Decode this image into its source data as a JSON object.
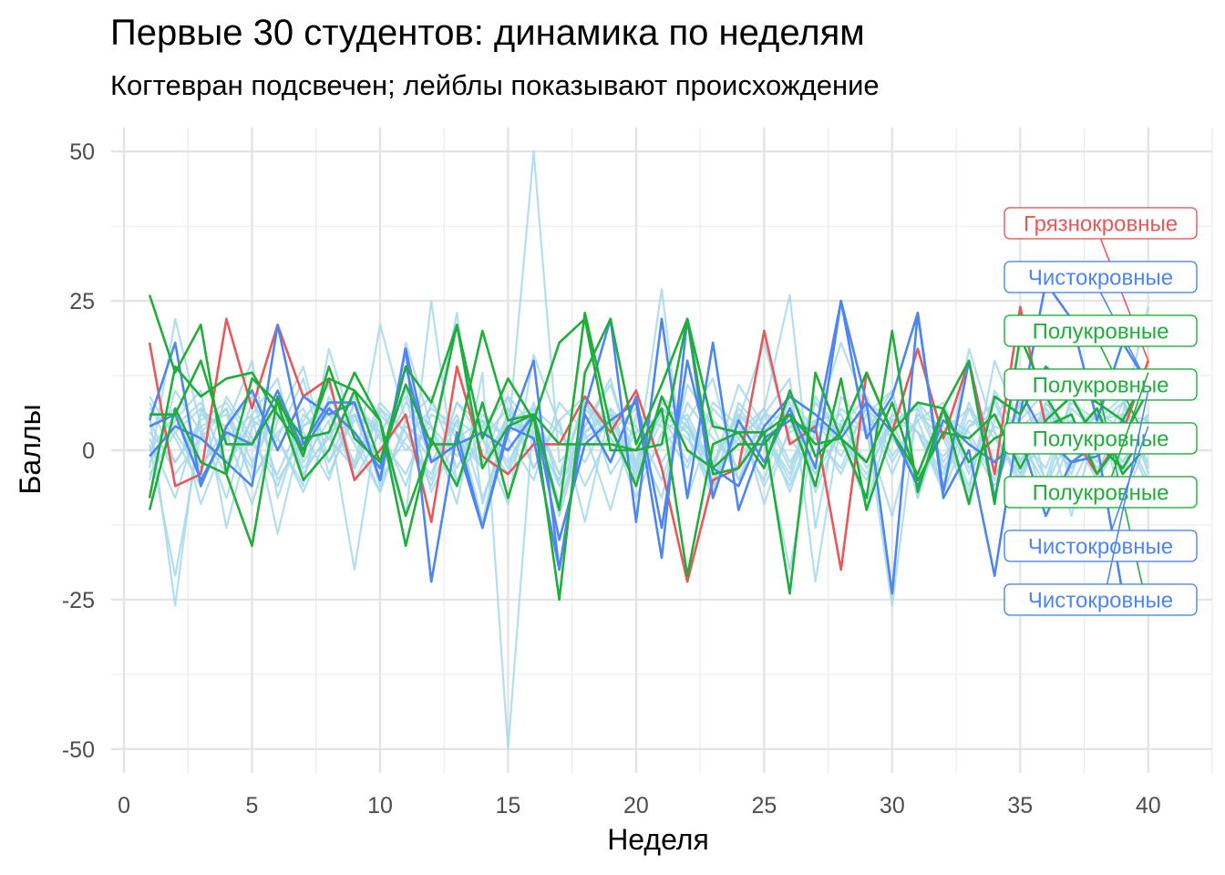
{
  "chart_data": {
    "type": "line",
    "title": "Первые 30 студентов: динамика по неделям",
    "subtitle": "Когтевран подсвечен; лейблы показывают происхождение",
    "xlabel": "Неделя",
    "ylabel": "Баллы",
    "xlim": [
      -0.5,
      42.5
    ],
    "ylim": [
      -54,
      54
    ],
    "x_ticks": [
      0,
      5,
      10,
      15,
      20,
      25,
      30,
      35,
      40
    ],
    "y_ticks": [
      50,
      25,
      0,
      -25,
      -50
    ],
    "y_tick_labels": [
      "50",
      "25",
      "0",
      "-25",
      "-50"
    ],
    "grid": true,
    "legend": "none",
    "colors": {
      "background_series": "#a6d8ea",
      "Грязнокровные": "#e8585a",
      "Чистокровные": "#4d86f0",
      "Полукровные": "#1fae3c"
    },
    "background_series": [
      [
        3,
        -2,
        5,
        8,
        1,
        -4,
        6,
        2,
        -3,
        7,
        0,
        4,
        -1,
        5,
        2,
        50,
        -2,
        3,
        6,
        -5,
        1,
        4,
        -3,
        7,
        2,
        -6,
        5,
        1,
        -2,
        8,
        3,
        -1,
        4,
        6,
        -4,
        2,
        5,
        -3,
        1,
        4
      ],
      [
        -3,
        22,
        4,
        -8,
        6,
        12,
        -5,
        9,
        1,
        -7,
        18,
        4,
        -9,
        13,
        -50,
        6,
        -11,
        4,
        12,
        -3,
        27,
        -8,
        5,
        1,
        7,
        26,
        -13,
        9,
        4,
        -26,
        8,
        3,
        -7,
        15,
        4,
        -9,
        2,
        6,
        -3,
        5
      ],
      [
        6,
        -26,
        7,
        3,
        -9,
        5,
        14,
        -2,
        8,
        3,
        -11,
        25,
        -6,
        4,
        9,
        -3,
        5,
        -12,
        7,
        2,
        -8,
        11,
        4,
        -5,
        6,
        12,
        -22,
        5,
        3,
        10,
        -8,
        7,
        -4,
        9,
        -2,
        6,
        -11,
        4,
        8,
        -3
      ],
      [
        -2,
        5,
        10,
        -13,
        4,
        7,
        -3,
        2,
        9,
        -6,
        4,
        1,
        23,
        -9,
        5,
        3,
        -10,
        7,
        2,
        -4,
        9,
        5,
        -7,
        6,
        1,
        -20,
        4,
        18,
        7,
        -4,
        6,
        2,
        -8,
        5,
        13,
        -6,
        3,
        7,
        -9,
        2
      ],
      [
        9,
        2,
        -6,
        4,
        15,
        -8,
        5,
        11,
        -3,
        6,
        1,
        -4,
        8,
        2,
        -9,
        16,
        4,
        -6,
        3,
        7,
        -2,
        5,
        12,
        -5,
        3,
        8,
        -7,
        4,
        9,
        -1,
        5,
        -6,
        17,
        3,
        -5,
        8,
        2,
        -4,
        6,
        24
      ],
      [
        1,
        -21,
        3,
        7,
        -5,
        2,
        12,
        -4,
        6,
        3,
        9,
        -7,
        2,
        5,
        -3,
        8,
        -6,
        4,
        11,
        -2,
        6,
        3,
        -8,
        5,
        18,
        2,
        -4,
        7,
        3,
        -11,
        6,
        4,
        -6,
        10,
        2,
        -3,
        8,
        5,
        -2,
        4
      ],
      [
        4,
        7,
        -9,
        2,
        6,
        -14,
        4,
        8,
        -5,
        3,
        10,
        -2,
        5,
        -12,
        7,
        2,
        -5,
        9,
        4,
        -8,
        3,
        6,
        -3,
        11,
        4,
        -7,
        5,
        2,
        -9,
        6,
        3,
        -4,
        8,
        -2,
        5,
        10,
        -6,
        3,
        4,
        -5
      ],
      [
        -5,
        10,
        3,
        -4,
        8,
        2,
        -6,
        17,
        3,
        -7,
        5,
        9,
        -3,
        6,
        2,
        -5,
        8,
        3,
        -10,
        6,
        4,
        -3,
        7,
        2,
        -5,
        9,
        3,
        -4,
        6,
        10,
        -8,
        5,
        2,
        -6,
        4,
        7,
        -3,
        5,
        9,
        -4
      ],
      [
        2,
        -8,
        6,
        4,
        -3,
        9,
        -2,
        5,
        -20,
        7,
        3,
        -5,
        8,
        4,
        -2,
        6,
        -9,
        3,
        7,
        -4,
        5,
        2,
        -6,
        8,
        3,
        -4,
        9,
        2,
        -5,
        6,
        3,
        -7,
        4,
        8,
        -2,
        5,
        -4,
        7,
        3,
        -6
      ],
      [
        7,
        3,
        -4,
        9,
        2,
        -6,
        4,
        7,
        -3,
        21,
        5,
        -2,
        6,
        -8,
        3,
        5,
        -4,
        8,
        2,
        -5,
        7,
        3,
        -2,
        6,
        -9,
        4,
        2,
        -3,
        8,
        5,
        -6,
        3,
        7,
        -2,
        4,
        -5,
        9,
        2,
        -4,
        6
      ],
      [
        -1,
        4,
        8,
        -3,
        5,
        2,
        -7,
        3,
        6,
        -2,
        8,
        4,
        -5,
        2,
        7,
        -3,
        5,
        9,
        -4,
        3,
        6,
        -2,
        8,
        4,
        -6,
        3,
        5,
        -1,
        7,
        2,
        -4,
        6,
        3,
        -5,
        8,
        2,
        -3,
        5,
        6,
        -2
      ],
      [
        5,
        -4,
        2,
        7,
        -2,
        6,
        3,
        -5,
        8,
        2,
        -4,
        6,
        3,
        -2,
        9,
        4,
        -6,
        2,
        5,
        -3,
        7,
        4,
        -2,
        6,
        3,
        -5,
        8,
        2,
        -4,
        5,
        7,
        -3,
        4,
        6,
        -2,
        8,
        3,
        -5,
        2,
        6
      ],
      [
        0,
        6,
        -3,
        4,
        9,
        -5,
        2,
        6,
        -2,
        8,
        3,
        -6,
        5,
        2,
        -4,
        7,
        3,
        -2,
        6,
        4,
        -5,
        8,
        2,
        -3,
        6,
        5,
        -4,
        3,
        7,
        -2,
        5,
        8,
        -3,
        4,
        2,
        -6,
        7,
        3,
        -2,
        5
      ],
      [
        -4,
        3,
        7,
        -2,
        5,
        8,
        -4,
        3,
        6,
        -5,
        2,
        7,
        4,
        -3,
        6,
        2,
        -5,
        8,
        3,
        -2,
        7,
        5,
        -4,
        2,
        6,
        -3,
        8,
        4,
        -2,
        5,
        3,
        -6,
        7,
        2,
        -4,
        6,
        4,
        -2,
        8,
        3
      ],
      [
        8,
        -2,
        4,
        6,
        -5,
        3,
        7,
        -2,
        5,
        4,
        -6,
        8,
        2,
        -3,
        5,
        7,
        -4,
        3,
        6,
        -2,
        8,
        4,
        -5,
        3,
        7,
        -2,
        5,
        6,
        -3,
        4,
        8,
        -2,
        5,
        3,
        -6,
        7,
        2,
        -4,
        6,
        5
      ]
    ],
    "series": [
      {
        "group": "Грязнокровные",
        "values": [
          18,
          -6,
          -4,
          22,
          7,
          21,
          9,
          12,
          -5,
          0,
          6,
          -12,
          14,
          -1,
          -4,
          1,
          1,
          9,
          3,
          10,
          -3,
          -22,
          -5,
          -3,
          20,
          1,
          4,
          -20,
          13,
          3,
          17,
          2,
          15,
          -4,
          24,
          4,
          3,
          -4,
          3,
          15
        ]
      },
      {
        "group": "Чистокровные",
        "values": [
          5,
          18,
          -6,
          4,
          10,
          0,
          9,
          6,
          8,
          -5,
          17,
          -22,
          3,
          -13,
          3,
          15,
          -20,
          7,
          22,
          -12,
          22,
          -8,
          18,
          -10,
          2,
          5,
          3,
          25,
          2,
          9,
          23,
          -8,
          0,
          -21,
          6,
          28,
          22,
          5,
          18,
          11
        ]
      },
      {
        "group": "Чистокровные",
        "values": [
          -1,
          4,
          2,
          -2,
          -6,
          21,
          1,
          8,
          8,
          -5,
          17,
          -2,
          1,
          3,
          0,
          6,
          -15,
          1,
          5,
          8,
          -18,
          22,
          -8,
          5,
          -2,
          7,
          -3,
          25,
          8,
          -24,
          23,
          -7,
          15,
          -8,
          10,
          2,
          -2,
          -1,
          5,
          1
        ]
      },
      {
        "group": "Чистокровные",
        "values": [
          4,
          6,
          -5,
          3,
          1,
          10,
          0,
          7,
          3,
          -3,
          14,
          -2,
          1,
          -13,
          4,
          2,
          -20,
          6,
          -2,
          9,
          -13,
          15,
          -3,
          -6,
          4,
          9,
          6,
          2,
          8,
          3,
          -6,
          5,
          1,
          -2,
          2,
          -11,
          -2,
          1,
          -24,
          -27
        ]
      },
      {
        "group": "Полукровные",
        "values": [
          26,
          13,
          21,
          -4,
          -16,
          9,
          -1,
          14,
          2,
          -2,
          11,
          1,
          21,
          -3,
          4,
          6,
          -25,
          13,
          22,
          1,
          11,
          22,
          -4,
          -3,
          3,
          -24,
          13,
          2,
          -8,
          20,
          -7,
          7,
          15,
          -9,
          19,
          9,
          2,
          7,
          -4,
          1
        ]
      },
      {
        "group": "Полукровные",
        "values": [
          -8,
          14,
          9,
          12,
          13,
          6,
          0,
          12,
          10,
          -2,
          14,
          8,
          21,
          2,
          12,
          5,
          18,
          22,
          0,
          0,
          7,
          -21,
          1,
          3,
          -3,
          10,
          -1,
          3,
          13,
          3,
          8,
          7,
          -9,
          9,
          6,
          14,
          10,
          8,
          5,
          13
        ]
      },
      {
        "group": "Полукровные",
        "values": [
          -10,
          7,
          -2,
          -4,
          12,
          8,
          -5,
          0,
          10,
          5,
          -11,
          1,
          1,
          20,
          5,
          6,
          1,
          1,
          1,
          0,
          1,
          22,
          4,
          3,
          3,
          6,
          1,
          2,
          -2,
          8,
          -5,
          3,
          2,
          6,
          -3,
          5,
          9,
          1,
          -3,
          4
        ]
      },
      {
        "group": "Полукровные",
        "values": [
          6,
          6,
          15,
          1,
          1,
          8,
          2,
          3,
          13,
          5,
          -16,
          2,
          -6,
          8,
          -8,
          6,
          -10,
          23,
          4,
          -6,
          9,
          0,
          -3,
          1,
          1,
          6,
          -6,
          12,
          -10,
          3,
          -4,
          7,
          -2,
          2,
          4,
          4,
          6,
          -4,
          2,
          10
        ]
      }
    ],
    "end_labels": [
      {
        "text": "Грязнокровные",
        "group": "Грязнокровные",
        "y": 38
      },
      {
        "text": "Чистокровные",
        "group": "Чистокровные",
        "y": 29
      },
      {
        "text": "Полукровные",
        "group": "Полукровные",
        "y": 20
      },
      {
        "text": "Полукровные",
        "group": "Полукровные",
        "y": 11
      },
      {
        "text": "Полукровные",
        "group": "Полукровные",
        "y": 2
      },
      {
        "text": "Полукровные",
        "group": "Полукровные",
        "y": -7
      },
      {
        "text": "Чистокровные",
        "group": "Чистокровные",
        "y": -16
      },
      {
        "text": "Чистокровные",
        "group": "Чистокровные",
        "y": -25
      }
    ]
  }
}
